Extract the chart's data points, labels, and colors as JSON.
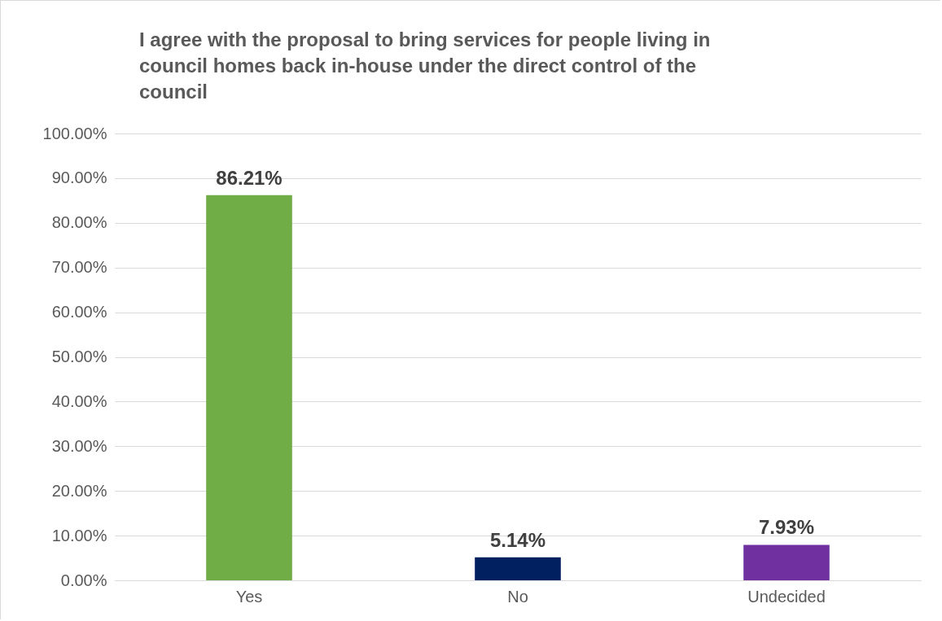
{
  "chart_data": {
    "type": "bar",
    "title": "I agree with the proposal to bring services for people living in council homes back in-house under the direct control of the council",
    "categories": [
      "Yes",
      "No",
      "Undecided"
    ],
    "values": [
      86.21,
      5.14,
      7.93
    ],
    "colors": [
      "#70ad47",
      "#002060",
      "#7030a0"
    ],
    "value_labels": [
      "86.21%",
      "5.14%",
      "7.93%"
    ],
    "ylim": [
      0,
      100
    ],
    "yticks": [
      {
        "value": 0,
        "label": "0.00%"
      },
      {
        "value": 10,
        "label": "10.00%"
      },
      {
        "value": 20,
        "label": "20.00%"
      },
      {
        "value": 30,
        "label": "30.00%"
      },
      {
        "value": 40,
        "label": "40.00%"
      },
      {
        "value": 50,
        "label": "50.00%"
      },
      {
        "value": 60,
        "label": "60.00%"
      },
      {
        "value": 70,
        "label": "70.00%"
      },
      {
        "value": 80,
        "label": "80.00%"
      },
      {
        "value": 90,
        "label": "90.00%"
      },
      {
        "value": 100,
        "label": "100.00%"
      }
    ],
    "grid": "y"
  }
}
